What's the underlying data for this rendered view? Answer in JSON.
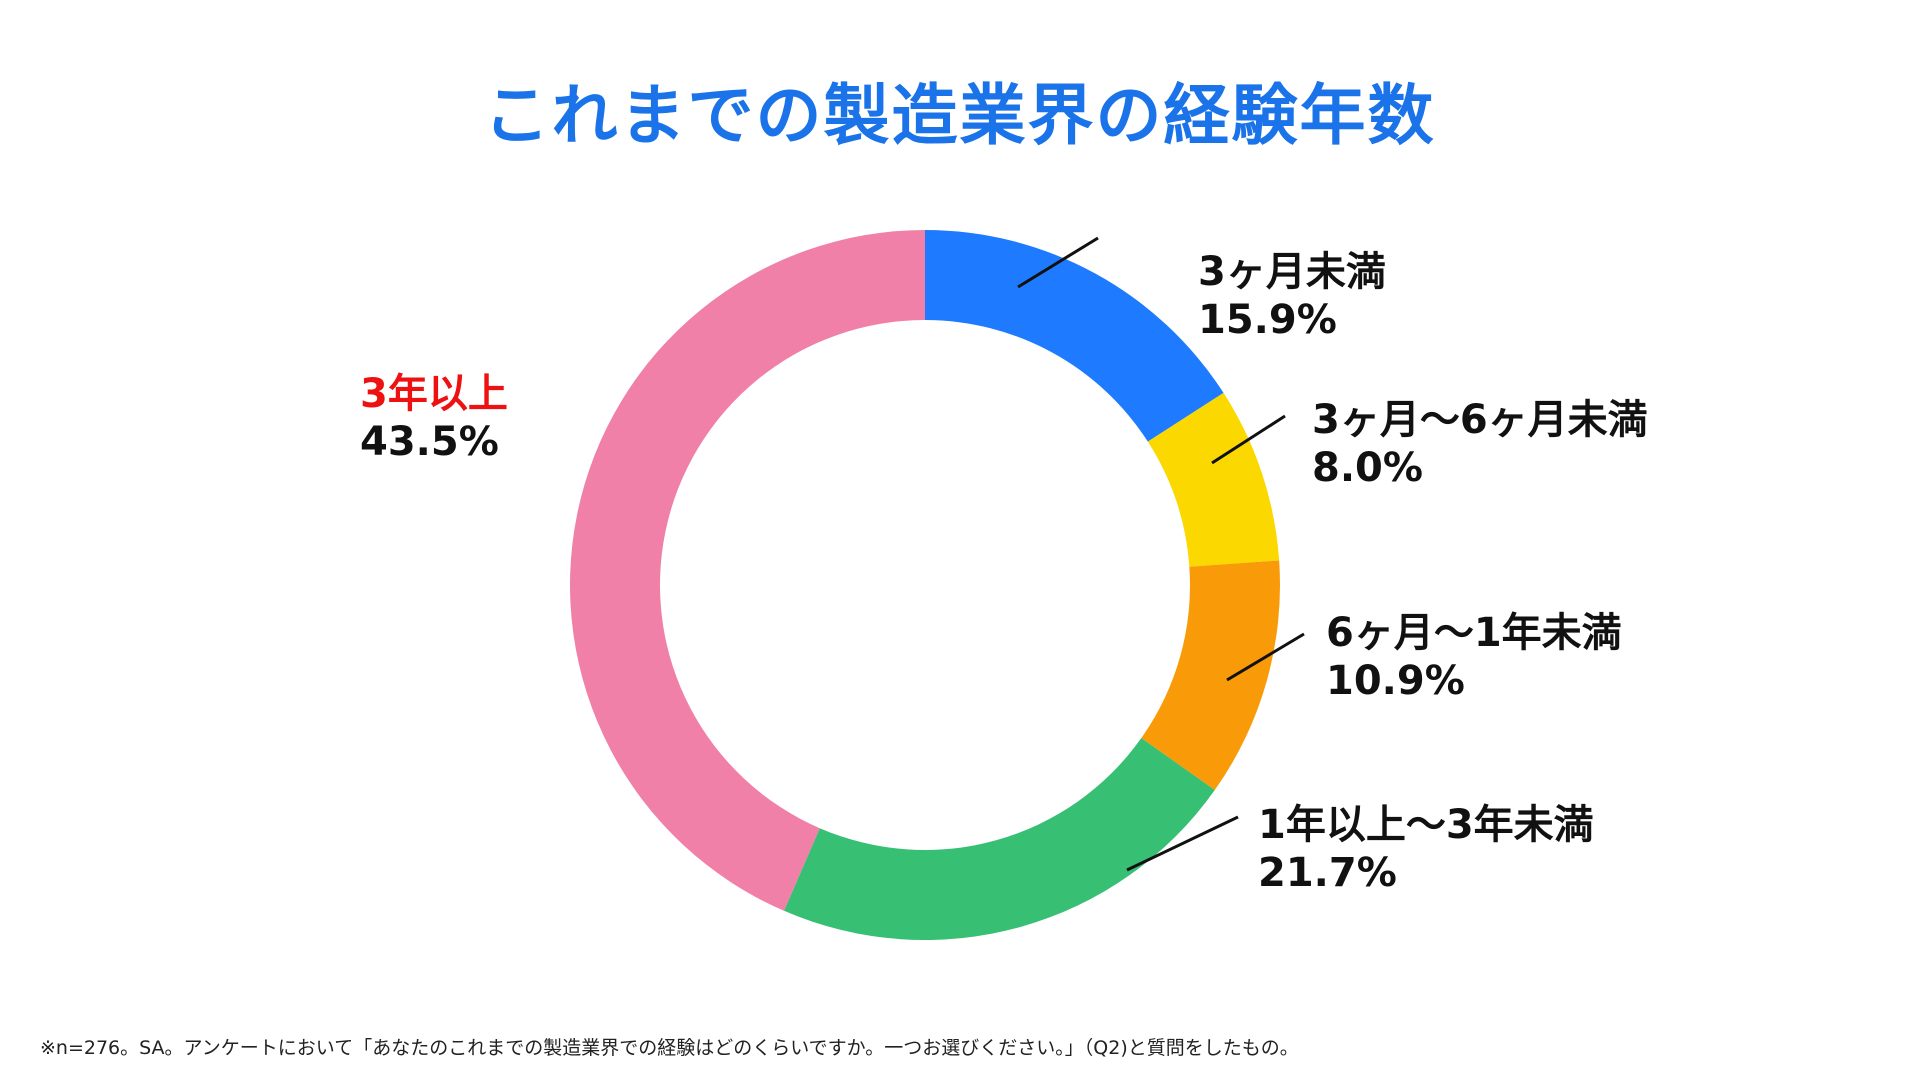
{
  "title": "これまでの製造業界の経験年数",
  "footnote": "※n=276。SA。アンケートにおいて「あなたのこれまでの製造業界での経験はどのくらいですか。一つお選びください。」（Q2)と質問をしたもの。",
  "chart_data": {
    "type": "pie",
    "title": "これまでの製造業界の経験年数",
    "donut": true,
    "start": "top",
    "direction": "clockwise",
    "categories": [
      "3ヶ月未満",
      "3ヶ月〜6ヶ月未満",
      "6ヶ月〜1年未満",
      "1年以上〜3年未満",
      "3年以上"
    ],
    "values": [
      15.9,
      8.0,
      10.9,
      21.7,
      43.5
    ],
    "value_labels": [
      "15.9%",
      "8.0%",
      "10.9%",
      "21.7%",
      "43.5%"
    ],
    "colors": [
      "#1e7bff",
      "#fbd800",
      "#f99b08",
      "#37bf73",
      "#f080a8"
    ],
    "label_colors": [
      "#111111",
      "#111111",
      "#111111",
      "#111111",
      "#ee1111"
    ]
  }
}
